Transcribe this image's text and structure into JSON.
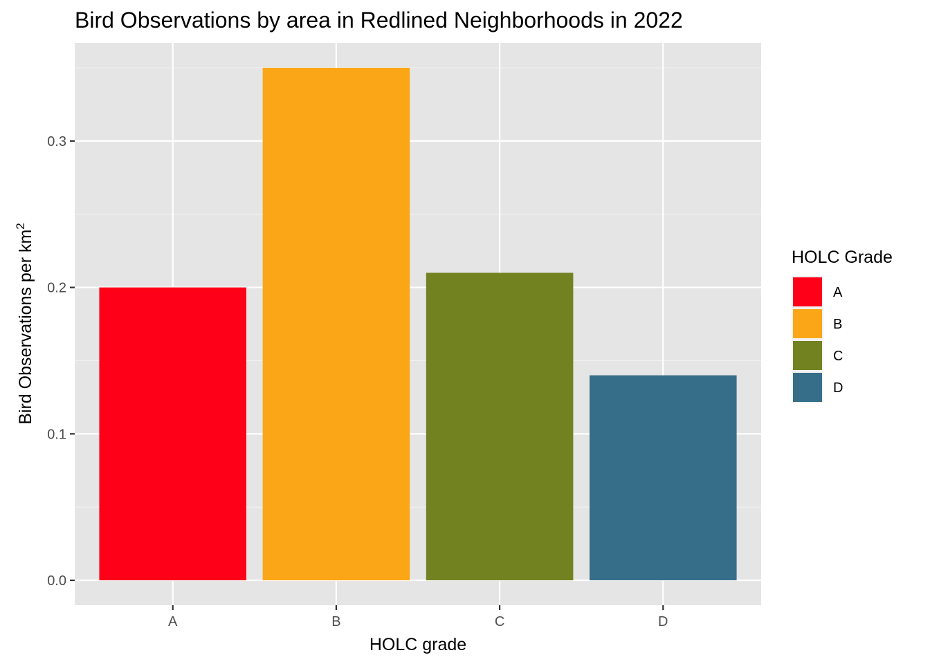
{
  "chart_data": {
    "type": "bar",
    "title": "Bird Observations by area in Redlined Neighborhoods in 2022",
    "xlabel": "HOLC grade",
    "ylabel": "Bird Observations per km",
    "ylabel_superscript": "2",
    "categories": [
      "A",
      "B",
      "C",
      "D"
    ],
    "values": [
      0.2,
      0.35,
      0.21,
      0.14
    ],
    "colors": [
      "#ff0019",
      "#fba616",
      "#728221",
      "#366d89"
    ],
    "ylim": [
      -0.017,
      0.367
    ],
    "y_ticks": [
      0.0,
      0.1,
      0.2,
      0.3
    ],
    "y_tick_labels": [
      "0.0",
      "0.1",
      "0.2",
      "0.3"
    ],
    "grid": true,
    "panel_background": "#e5e5e5",
    "legend": {
      "title": "HOLC Grade",
      "placement": "right",
      "entries": [
        "A",
        "B",
        "C",
        "D"
      ]
    }
  }
}
